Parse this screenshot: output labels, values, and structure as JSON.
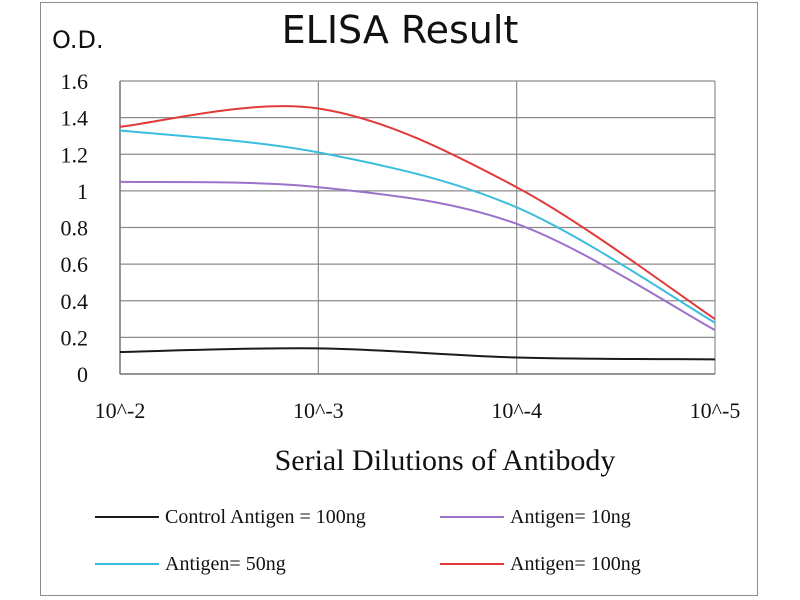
{
  "chart_data": {
    "type": "line",
    "title": "ELISA Result",
    "ylabel": "O.D.",
    "xlabel": "Serial Dilutions  of Antibody",
    "x_ticks": [
      "10^-2",
      "10^-3",
      "10^-4",
      "10^-5"
    ],
    "y_ticks": [
      "0",
      "0.2",
      "0.4",
      "0.6",
      "0.8",
      "1",
      "1.2",
      "1.4",
      "1.6"
    ],
    "ylim": [
      0,
      1.6
    ],
    "grid": true,
    "legend_position": "bottom",
    "series": [
      {
        "name": "Control Antigen = 100ng",
        "color": "#1a1a1a",
        "values": [
          0.12,
          0.14,
          0.09,
          0.08
        ]
      },
      {
        "name": "Antigen= 10ng",
        "color": "#9a73c9",
        "values": [
          1.05,
          1.02,
          0.82,
          0.24
        ]
      },
      {
        "name": "Antigen= 50ng",
        "color": "#3bbde0",
        "values": [
          1.33,
          1.21,
          0.91,
          0.28
        ]
      },
      {
        "name": "Antigen= 100ng",
        "color": "#e23a3a",
        "values": [
          1.35,
          1.45,
          1.02,
          0.3
        ]
      }
    ]
  }
}
